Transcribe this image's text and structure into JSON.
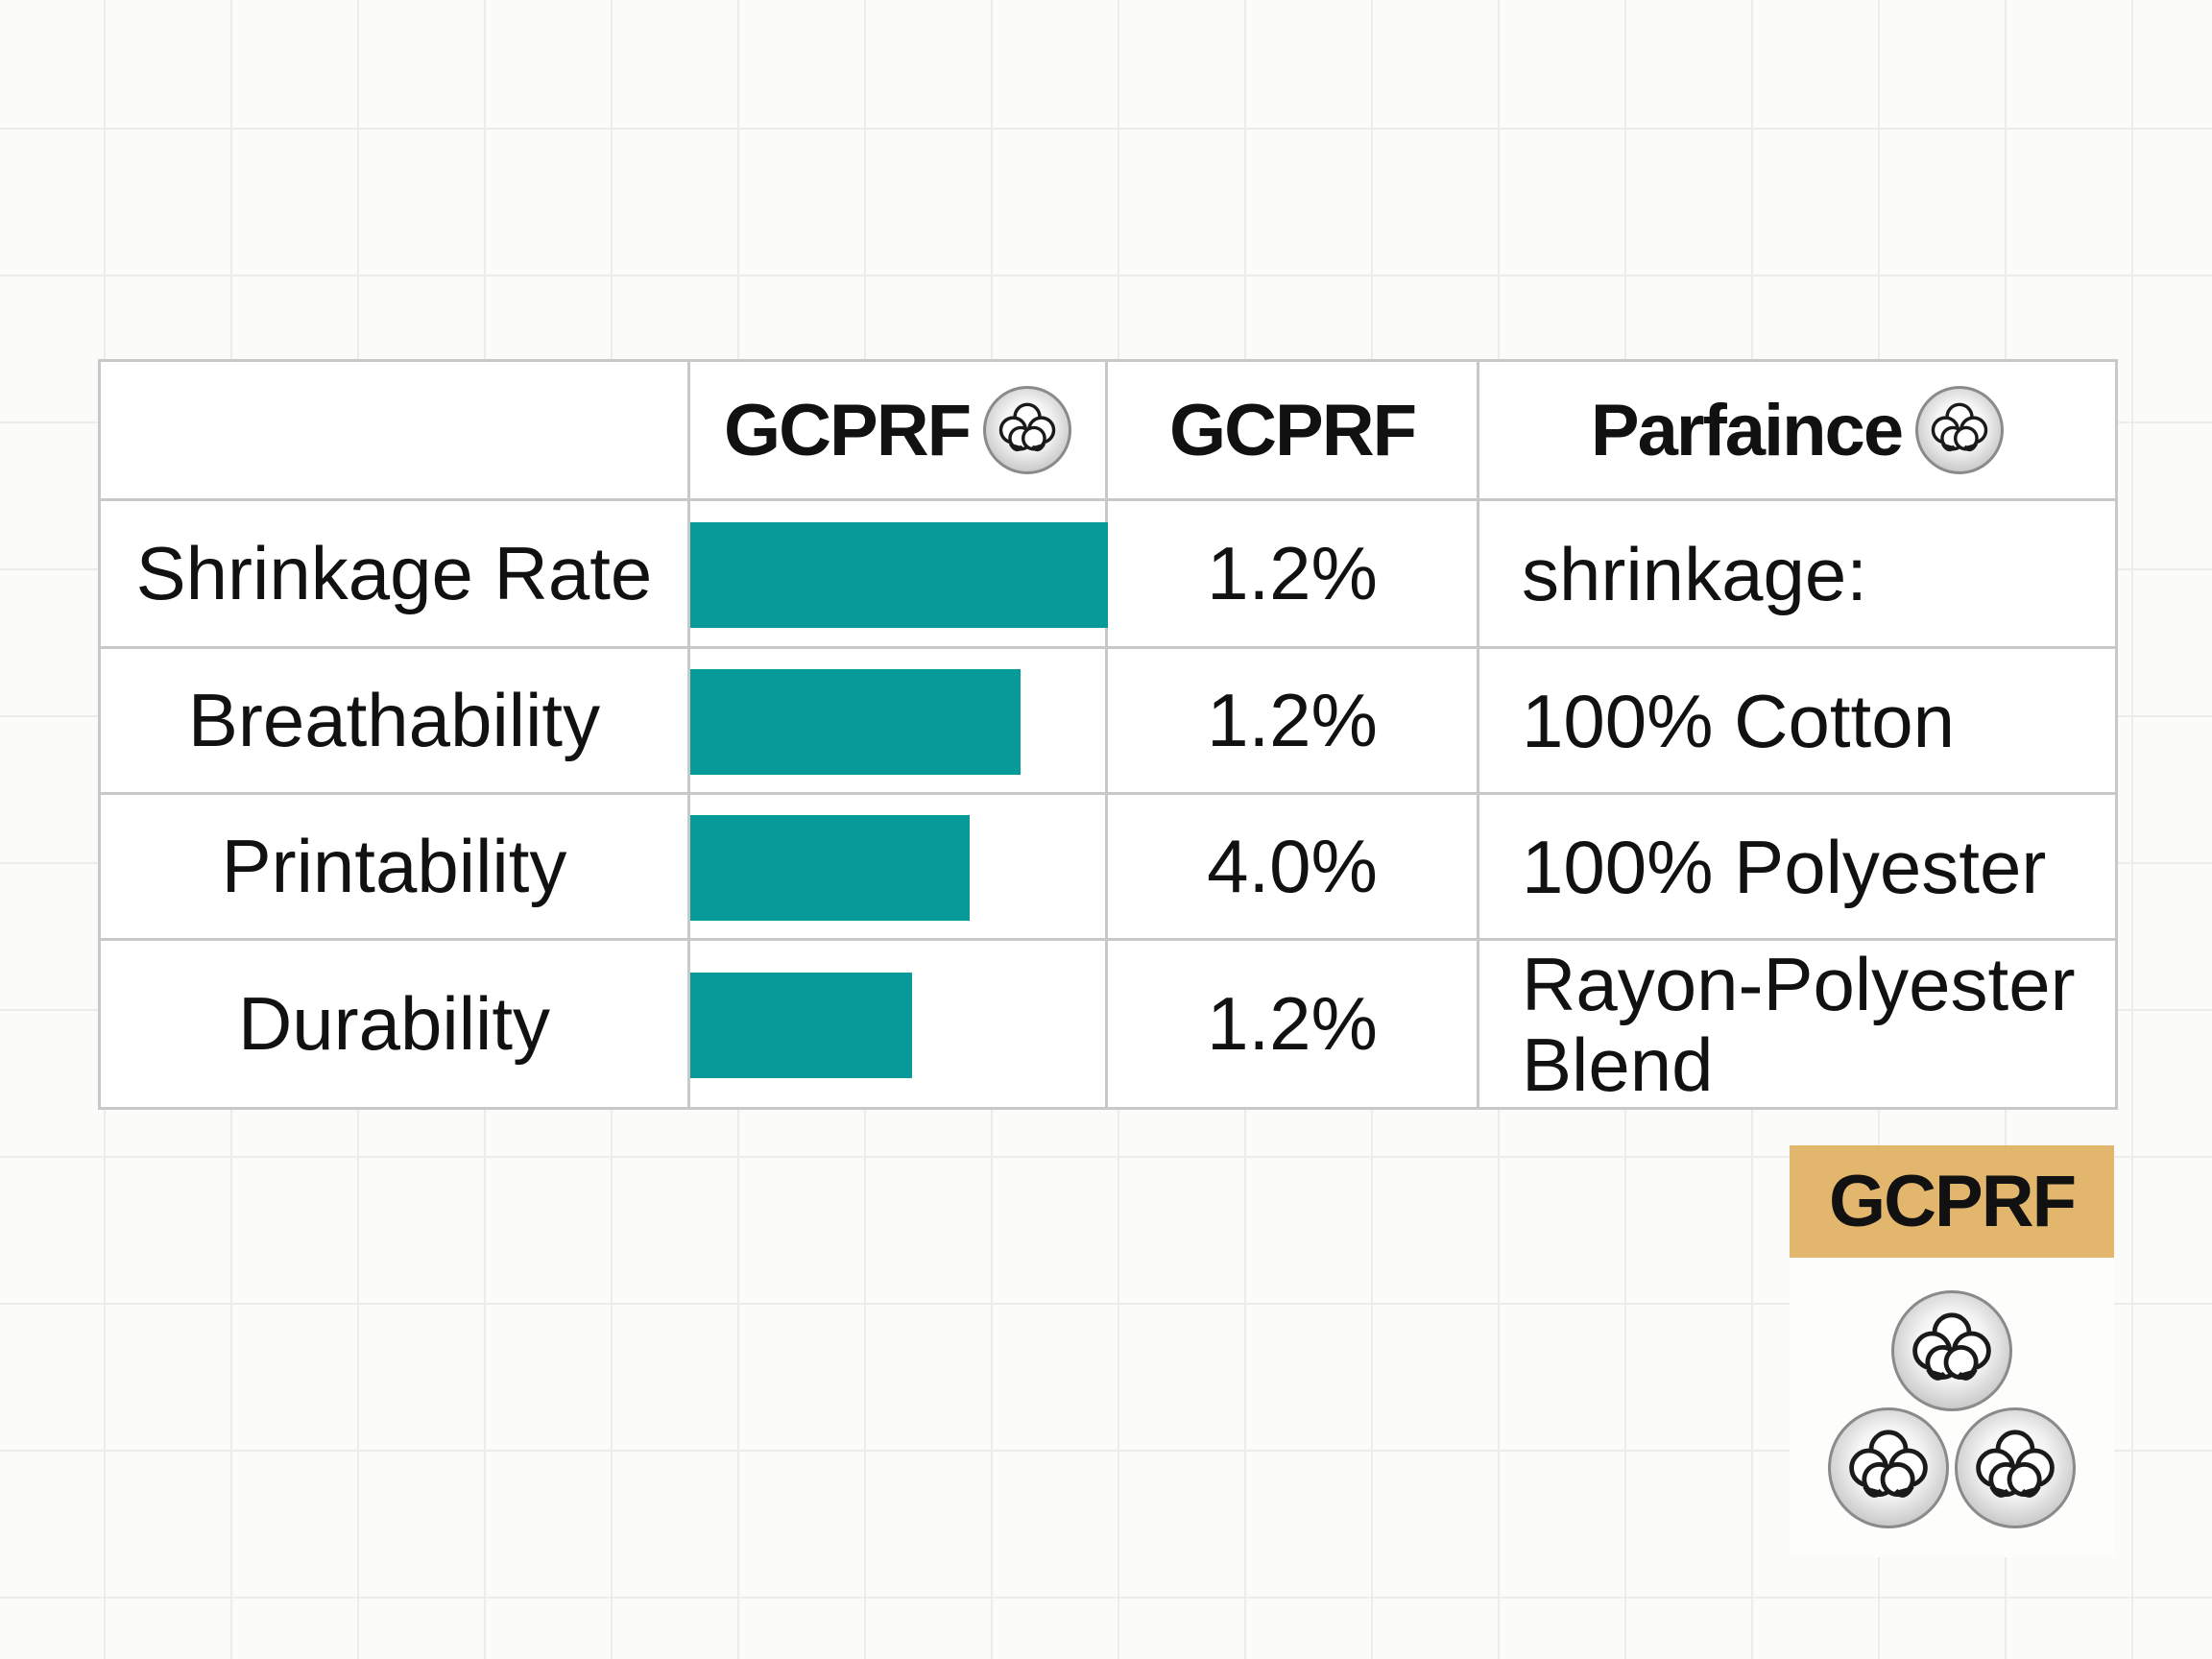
{
  "table": {
    "headers": [
      "",
      "GCPRF",
      "GCPRF",
      "Parfaince"
    ],
    "header_icons": [
      "",
      "cotton-boll-icon",
      "",
      "cotton-boll-icon"
    ],
    "rows": [
      {
        "label": "Shrinkage Rate",
        "value": "1.2%",
        "note": "shrinkage:"
      },
      {
        "label": "Breathability",
        "value": "1.2%",
        "note": "100% Cotton"
      },
      {
        "label": "Printability",
        "value": "4.0%",
        "note": "100% Polyester"
      },
      {
        "label": "Durability",
        "value": "1.2%",
        "note": "Rayon-Polyester Blend"
      }
    ]
  },
  "chart_data": {
    "type": "bar",
    "orientation": "horizontal",
    "categories": [
      "Shrinkage Rate",
      "Breathability",
      "Printability",
      "Durability"
    ],
    "values": [
      100,
      79,
      67,
      53
    ],
    "value_scale": "relative (% of column width)",
    "bar_color": "#089a98"
  },
  "badge": {
    "label": "GCPRF",
    "icons": [
      "cotton-boll-icon",
      "cotton-boll-icon",
      "cotton-boll-icon"
    ],
    "label_color": "#e2b66d"
  },
  "colors": {
    "bar": "#089a98",
    "grid_line": "#c8c8c8",
    "background": "#fbfbf9"
  }
}
